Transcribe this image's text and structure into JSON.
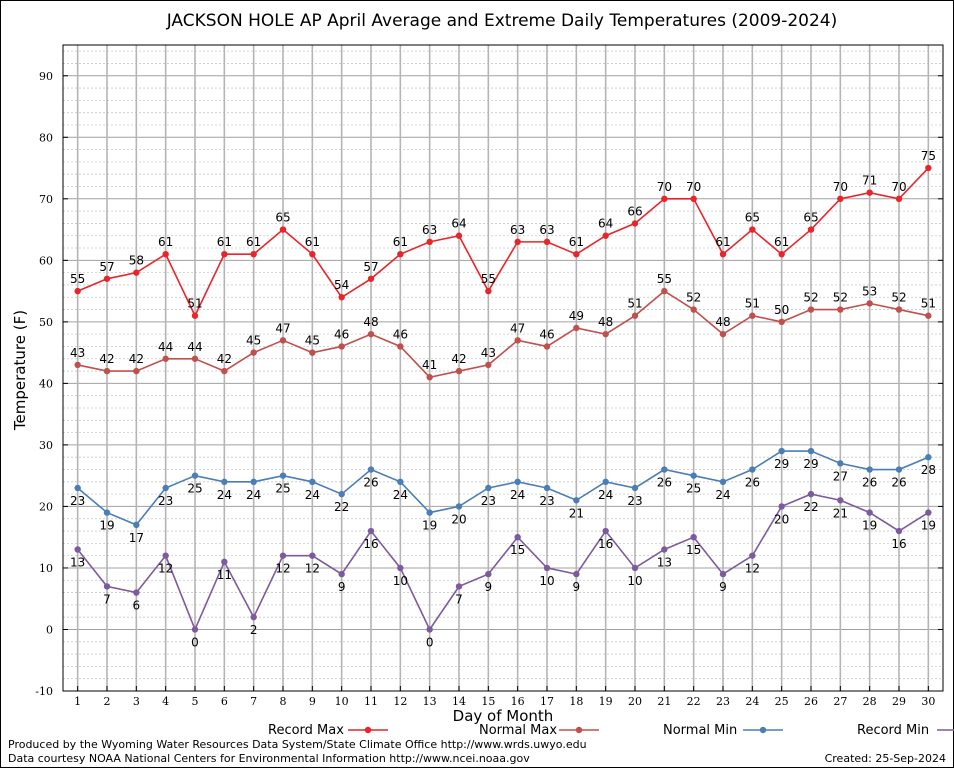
{
  "chart_data": {
    "type": "line",
    "title": "JACKSON HOLE AP April Average and Extreme Daily Temperatures (2009-2024)",
    "xlabel": "Day of Month",
    "ylabel": "Temperature (F)",
    "x": [
      1,
      2,
      3,
      4,
      5,
      6,
      7,
      8,
      9,
      10,
      11,
      12,
      13,
      14,
      15,
      16,
      17,
      18,
      19,
      20,
      21,
      22,
      23,
      24,
      25,
      26,
      27,
      28,
      29,
      30
    ],
    "xlim": [
      0.5,
      30.5
    ],
    "ylim": [
      -10,
      95
    ],
    "yticks": [
      -10,
      0,
      10,
      20,
      30,
      40,
      50,
      60,
      70,
      80,
      90
    ],
    "grid": true,
    "legend_position": "bottom",
    "series": [
      {
        "name": "Record Max",
        "color": "#e8252a",
        "label_pos": "above",
        "values": [
          55,
          57,
          58,
          61,
          51,
          61,
          61,
          65,
          61,
          54,
          57,
          61,
          63,
          64,
          55,
          63,
          63,
          61,
          64,
          66,
          70,
          70,
          61,
          65,
          61,
          65,
          70,
          71,
          70,
          75
        ]
      },
      {
        "name": "Normal Max",
        "color": "#c0504d",
        "label_pos": "above",
        "values": [
          43,
          42,
          42,
          44,
          44,
          42,
          45,
          47,
          45,
          46,
          48,
          46,
          41,
          42,
          43,
          47,
          46,
          49,
          48,
          51,
          55,
          52,
          48,
          51,
          50,
          52,
          52,
          53,
          52,
          51
        ]
      },
      {
        "name": "Normal Min",
        "color": "#4a7eb5",
        "label_pos": "below",
        "values": [
          23,
          19,
          17,
          23,
          25,
          24,
          24,
          25,
          24,
          22,
          26,
          24,
          19,
          20,
          23,
          24,
          23,
          21,
          24,
          23,
          26,
          25,
          24,
          26,
          29,
          29,
          27,
          26,
          26,
          28
        ]
      },
      {
        "name": "Record Min",
        "color": "#7d5a9e",
        "label_pos": "below",
        "values": [
          13,
          7,
          6,
          12,
          0,
          11,
          2,
          12,
          12,
          9,
          16,
          10,
          0,
          7,
          9,
          15,
          10,
          9,
          16,
          10,
          13,
          15,
          9,
          12,
          20,
          22,
          21,
          19,
          16,
          19
        ]
      }
    ]
  },
  "footer": {
    "produced_by": "Produced by the Wyoming Water Resources Data System/State Climate Office http://www.wrds.uwyo.edu",
    "courtesy": "Data courtesy NOAA National Centers for Environmental Information http://www.ncei.noaa.gov",
    "created": "Created:  25-Sep-2024"
  }
}
